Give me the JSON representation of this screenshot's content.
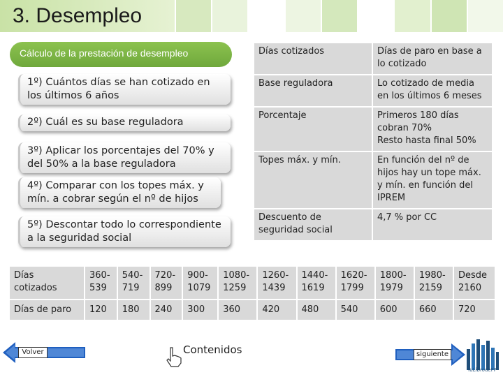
{
  "header": {
    "title": "3. Desempleo",
    "square_colors": [
      "#d7e9bf",
      "#e9f3dc",
      "#ffffff",
      "#edf5e2",
      "#d4e8bc",
      "#ffffff",
      "#e2f0cf",
      "#cfe5b4",
      "#f2f8ea"
    ]
  },
  "steps": {
    "section_title": "Cálculo de la prestación de desempleo",
    "step1": "1º) Cuántos días se han cotizado en los últimos 6 años",
    "step2": "2º) Cuál es su base reguladora",
    "step3": "3º) Aplicar los porcentajes del 70% y del 50% a la base reguladora",
    "step4": "4º) Comparar con los topes máx. y mín. a cobrar según el nº de hijos",
    "step5": "5º) Descontar todo lo correspondiente a la seguridad social"
  },
  "info_table": {
    "rows": [
      {
        "label": "Días cotizados",
        "value": "Días de paro en base a lo cotizado"
      },
      {
        "label": "Base reguladora",
        "value": "Lo cotizado de media en los últimos 6 meses"
      },
      {
        "label": "Porcentaje",
        "value_line1": "Primeros 180 días cobran 70%",
        "value_line2": "Resto hasta final 50%"
      },
      {
        "label": "Topes máx. y mín.",
        "value": "En función del nº de hijos hay un tope máx. y mín. en función del IPREM"
      },
      {
        "label": "Descuento de seguridad social",
        "value": "4,7 % por CC"
      }
    ]
  },
  "bottom_table": {
    "row1_label": "Días cotizados",
    "row1": [
      "360-539",
      "540-719",
      "720-899",
      "900-1079",
      "1080-1259",
      "1260-1439",
      "1440-1619",
      "1620-1799",
      "1800-1979",
      "1980-2159",
      "Desde 2160"
    ],
    "row2_label": "Días de paro",
    "row2": [
      "120",
      "180",
      "240",
      "300",
      "360",
      "420",
      "480",
      "540",
      "600",
      "660",
      "720"
    ]
  },
  "footer": {
    "back_label": "Volver",
    "contents_label": "Contenidos",
    "next_label": "siguiente",
    "logo_text": "TuLibrodeFP"
  },
  "colors": {
    "accent_green": "#7cb342",
    "nav_arrow": "#1f5fbf",
    "cell_grey": "#d9d9d9"
  }
}
